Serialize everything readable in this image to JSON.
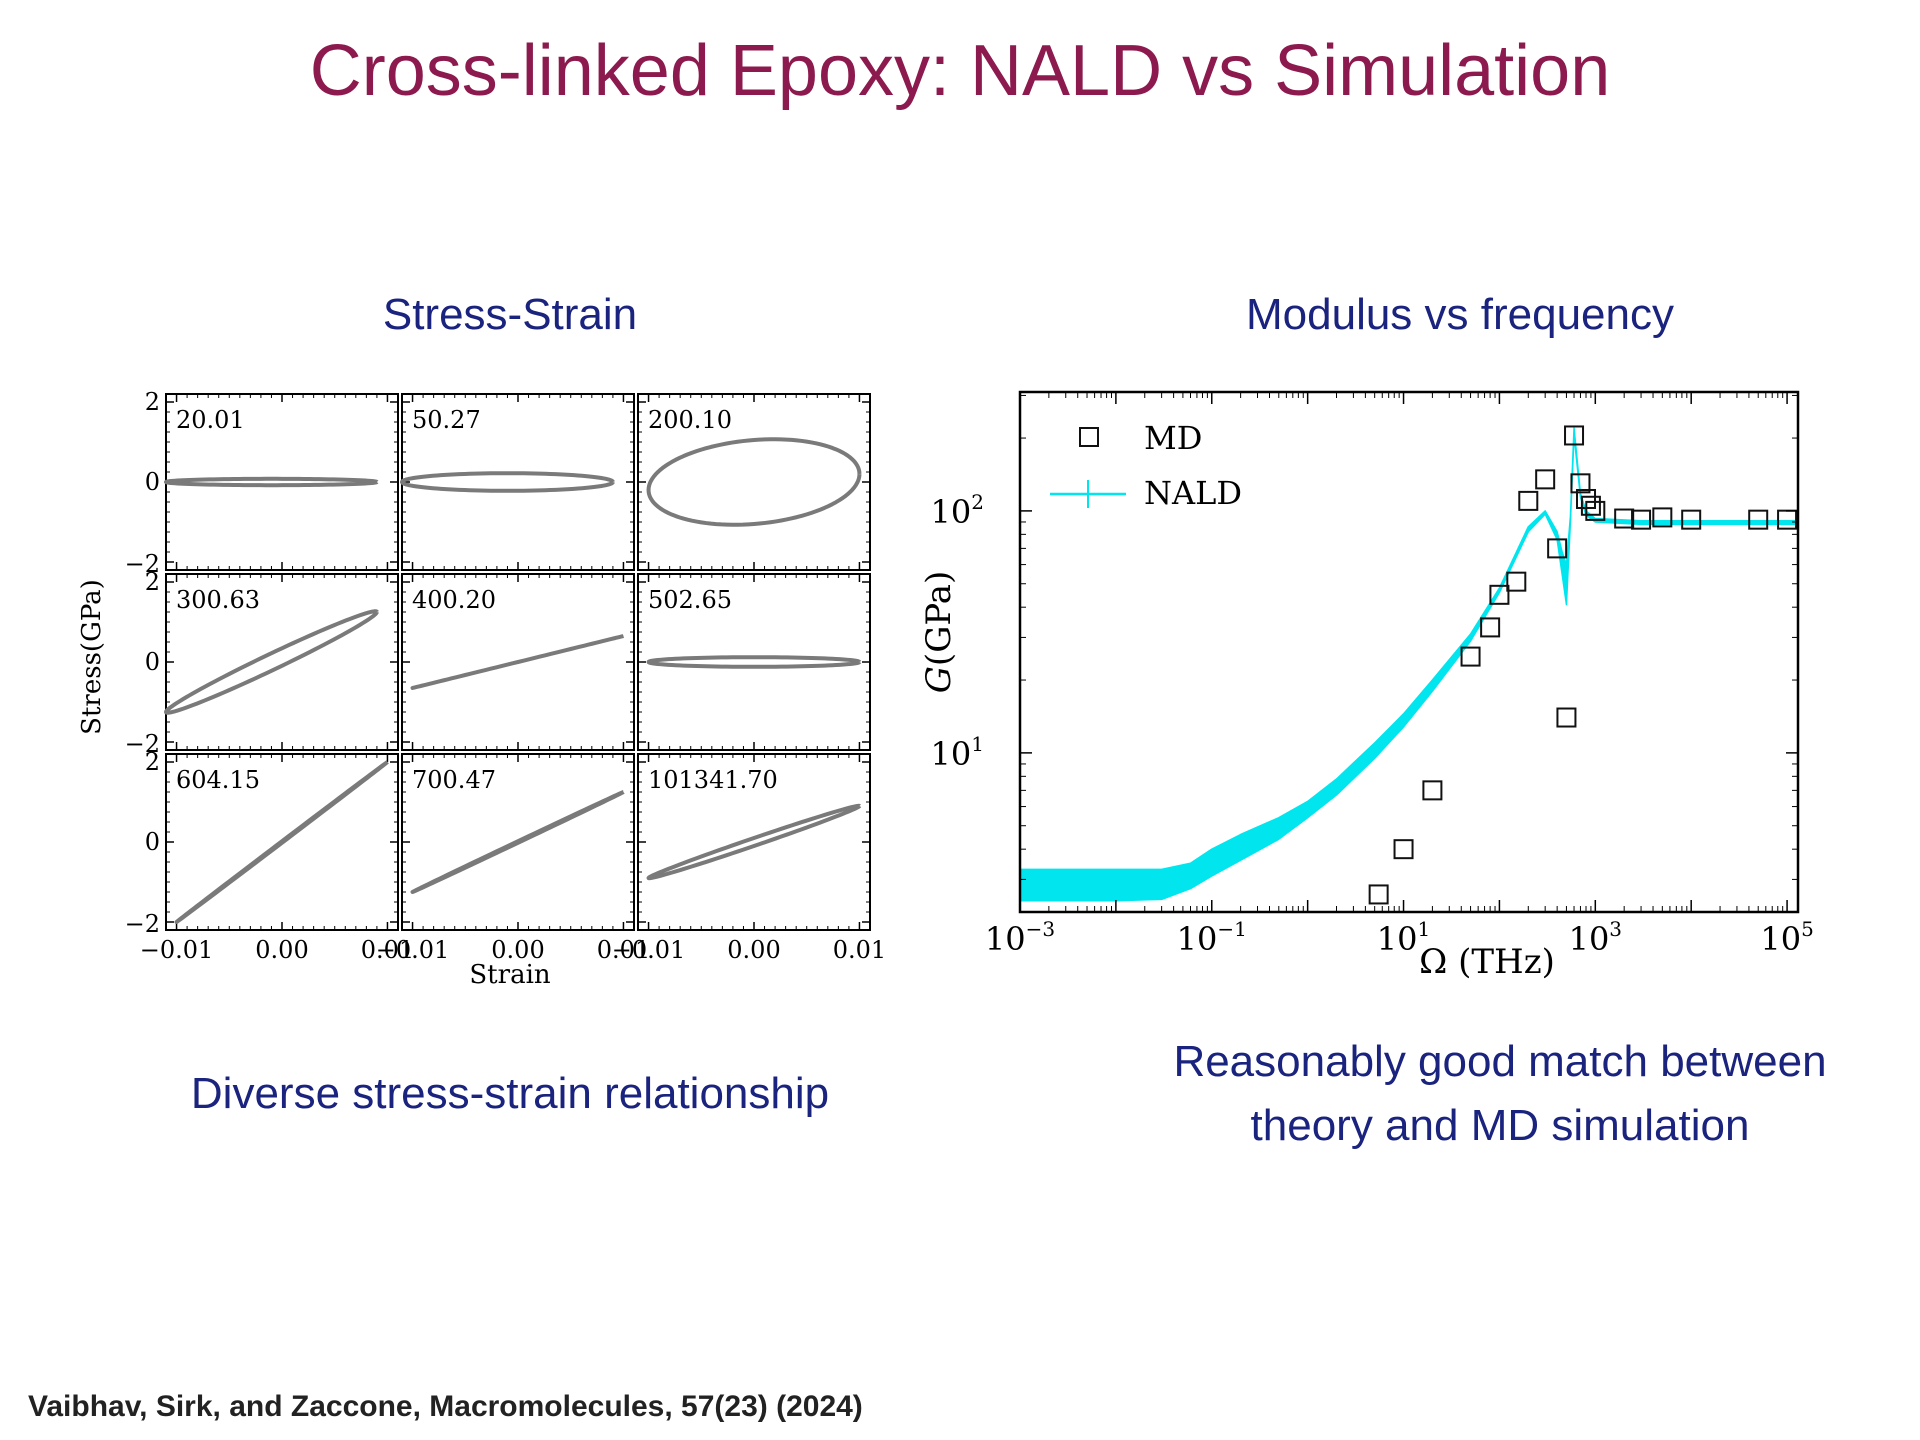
{
  "slide": {
    "title": "Cross-linked Epoxy: NALD vs Simulation",
    "left_heading": "Stress-Strain",
    "right_heading": "Modulus vs frequency",
    "left_caption": "Diverse stress-strain relationship",
    "right_caption_line1": "Reasonably good match between",
    "right_caption_line2": "theory and MD simulation",
    "reference": "Vaibhav, Sirk, and Zaccone, Macromolecules, 57(23) (2024)"
  },
  "colors": {
    "title": "#8c1a4e",
    "heading": "#1a237e",
    "loop": "#7a7a7a",
    "nald": "#00e5ee",
    "md": "#111111"
  },
  "chart_data": [
    {
      "type": "line",
      "layout_grid": "3x3 small multiples",
      "xlabel": "Strain",
      "ylabel": "Stress(GPa)",
      "xlim": [
        -0.011,
        0.011
      ],
      "ylim": [
        -2.2,
        2.2
      ],
      "xticks": [
        -0.01,
        0.0,
        0.01
      ],
      "xtick_labels": [
        "−0.01",
        "0.00",
        "0.01"
      ],
      "yticks": [
        -2,
        0,
        2
      ],
      "ytick_labels": [
        "−2",
        "0",
        "2"
      ],
      "panels": [
        {
          "label": "20.01",
          "amplitude": 0.01,
          "center_x": -0.001,
          "slope": 0.0,
          "y_width": 0.08
        },
        {
          "label": "50.27",
          "amplitude": 0.01,
          "center_x": -0.001,
          "slope": 0.0,
          "y_width": 0.22
        },
        {
          "label": "200.10",
          "amplitude": 0.01,
          "center_x": 0.0,
          "slope": 20.0,
          "y_width": 1.05
        },
        {
          "label": "300.63",
          "amplitude": 0.01,
          "center_x": -0.001,
          "slope": 125.0,
          "y_width": 0.22
        },
        {
          "label": "400.20",
          "amplitude": 0.01,
          "center_x": 0.0,
          "slope": 65.0,
          "y_width": 0.0
        },
        {
          "label": "502.65",
          "amplitude": 0.01,
          "center_x": 0.0,
          "slope": 0.0,
          "y_width": 0.12
        },
        {
          "label": "604.15",
          "amplitude": 0.01,
          "center_x": 0.0,
          "slope": 200.0,
          "y_width": 0.02
        },
        {
          "label": "700.47",
          "amplitude": 0.01,
          "center_x": 0.0,
          "slope": 125.0,
          "y_width": 0.02
        },
        {
          "label": "101341.70",
          "amplitude": 0.01,
          "center_x": 0.0,
          "slope": 90.0,
          "y_width": 0.1
        }
      ]
    },
    {
      "type": "scatter",
      "xlabel": "Ω (THz)",
      "ylabel": "G(GPa)",
      "x_scale": "log",
      "y_scale": "log",
      "xlim": [
        0.001,
        130000
      ],
      "ylim": [
        2.2,
        310
      ],
      "xticks": [
        0.001,
        0.1,
        10,
        1000,
        100000
      ],
      "xtick_labels": [
        [
          "10",
          "−3"
        ],
        [
          "10",
          "−1"
        ],
        [
          "10",
          "1"
        ],
        [
          "10",
          "3"
        ],
        [
          "10",
          "5"
        ]
      ],
      "yticks": [
        10,
        100
      ],
      "ytick_labels": [
        [
          "10",
          "1"
        ],
        [
          "10",
          "2"
        ]
      ],
      "legend_position": "top-left",
      "series": [
        {
          "name": "MD",
          "marker": "open-square",
          "points": [
            [
              5.5,
              2.6
            ],
            [
              10,
              4.0
            ],
            [
              20,
              7.0
            ],
            [
              50,
              25
            ],
            [
              80,
              33
            ],
            [
              100,
              45
            ],
            [
              150,
              51
            ],
            [
              200,
              110
            ],
            [
              300,
              135
            ],
            [
              400,
              70
            ],
            [
              500,
              14
            ],
            [
              600,
              205
            ],
            [
              700,
              130
            ],
            [
              800,
              112
            ],
            [
              900,
              105
            ],
            [
              1000,
              100
            ],
            [
              2000,
              93
            ],
            [
              3000,
              92
            ],
            [
              5000,
              94
            ],
            [
              10000,
              92
            ],
            [
              50000,
              92
            ],
            [
              100000,
              92
            ]
          ]
        },
        {
          "name": "NALD",
          "style": "band",
          "upper": [
            [
              0.001,
              3.3
            ],
            [
              0.01,
              3.3
            ],
            [
              0.03,
              3.3
            ],
            [
              0.06,
              3.5
            ],
            [
              0.1,
              4.0
            ],
            [
              0.2,
              4.6
            ],
            [
              0.5,
              5.4
            ],
            [
              1,
              6.3
            ],
            [
              2,
              7.8
            ],
            [
              5,
              11.0
            ],
            [
              10,
              14.5
            ],
            [
              20,
              20.0
            ],
            [
              50,
              31.0
            ],
            [
              100,
              48.0
            ],
            [
              200,
              86.0
            ],
            [
              300,
              100.0
            ],
            [
              400,
              82.0
            ],
            [
              450,
              68.0
            ],
            [
              500,
              60.0
            ],
            [
              550,
              95.0
            ],
            [
              600,
              220.0
            ],
            [
              700,
              118.0
            ],
            [
              800,
              100.0
            ],
            [
              1000,
              93.0
            ],
            [
              3000,
              91.0
            ],
            [
              10000,
              91.0
            ],
            [
              130000,
              91.0
            ]
          ],
          "lower": [
            [
              0.001,
              2.45
            ],
            [
              0.01,
              2.45
            ],
            [
              0.03,
              2.48
            ],
            [
              0.06,
              2.75
            ],
            [
              0.1,
              3.1
            ],
            [
              0.2,
              3.6
            ],
            [
              0.5,
              4.4
            ],
            [
              1,
              5.4
            ],
            [
              2,
              6.7
            ],
            [
              5,
              9.5
            ],
            [
              10,
              12.8
            ],
            [
              20,
              18.0
            ],
            [
              50,
              29.0
            ],
            [
              100,
              46.0
            ],
            [
              200,
              82.0
            ],
            [
              300,
              97.0
            ],
            [
              400,
              76.0
            ],
            [
              450,
              55.0
            ],
            [
              500,
              41.0
            ],
            [
              550,
              90.0
            ],
            [
              600,
              205.0
            ],
            [
              700,
              114.0
            ],
            [
              800,
              96.0
            ],
            [
              1000,
              90.0
            ],
            [
              3000,
              88.0
            ],
            [
              10000,
              88.0
            ],
            [
              130000,
              88.0
            ]
          ]
        }
      ]
    }
  ]
}
